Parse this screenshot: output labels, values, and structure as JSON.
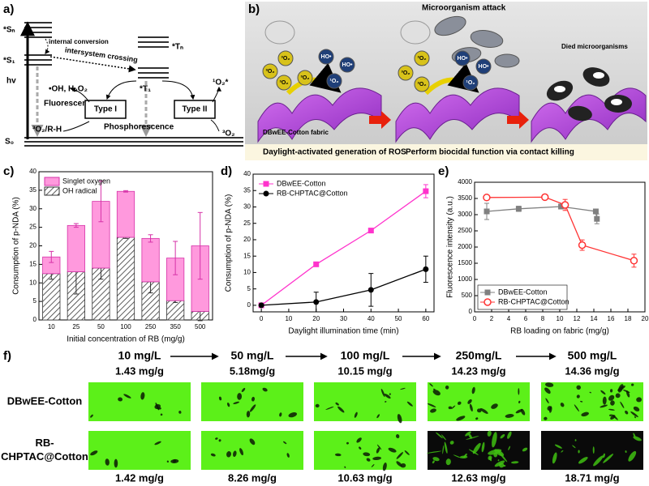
{
  "panel_labels": [
    "a)",
    "b)",
    "c)",
    "d)",
    "e)",
    "f)"
  ],
  "diagram_a": {
    "levels": [
      "*Sₙ",
      "*S₁",
      "S₀"
    ],
    "triplets": [
      "*Tₙ",
      "*T₁"
    ],
    "hv": "hv",
    "internal_conversion": "internal conversion",
    "intersystem_crossing": "intersystem crossing",
    "fluorescence": "Fluorescence",
    "phosphorescence": "Phosphorescence",
    "type1": "Type I",
    "type2": "Type II",
    "type1_in": "³O₂/R-H",
    "type1_out": "•OH, H₂O₂",
    "type2_in": "³O₂",
    "type2_out": "¹O₂*"
  },
  "illustration_b": {
    "attack": "Microorganism attack",
    "died": "Died microorganisms",
    "fabric": "DBwEE-Cotton fabric",
    "caption_left": "Daylight-activated generation of ROS",
    "caption_right": "Perform biocidal function via contact killing",
    "scene1_molecules": [
      "³O₂",
      "³O₂",
      "³O₂",
      "³O₂",
      "HO•",
      "HO•",
      "¹O₂"
    ],
    "scene2_molecules": [
      "³O₂",
      "³O₂",
      "³O₂",
      "HO•",
      "HO•",
      "¹O₂"
    ]
  },
  "chart_data": [
    {
      "type": "bar",
      "stacked": true,
      "categories": [
        "10",
        "25",
        "50",
        "100",
        "250",
        "350",
        "500"
      ],
      "series": [
        {
          "name": "OH radical",
          "color": "#333333",
          "pattern": "hatch",
          "values": [
            12.5,
            13,
            14,
            22.3,
            10.3,
            5.2,
            2.3
          ],
          "errors": [
            1.5,
            6,
            3,
            0.3,
            3,
            0.5,
            2.5
          ]
        },
        {
          "name": "Singlet oxygen",
          "color": "#ff99dd",
          "values": [
            4.5,
            12.5,
            18,
            12.4,
            11.7,
            11.5,
            17.7
          ],
          "errors": [
            1.5,
            0.5,
            5.5,
            0.2,
            1,
            4.5,
            9
          ]
        }
      ],
      "ylim": [
        0,
        40
      ],
      "yticks": [
        0,
        5,
        10,
        15,
        20,
        25,
        30,
        35,
        40
      ],
      "ylabel": "Consumption of p-NDA (%)",
      "xlabel": "Initial concentration of RB (mg/g)",
      "legend": "top-left"
    },
    {
      "type": "line",
      "x": [
        0,
        20,
        40,
        60
      ],
      "series": [
        {
          "name": "DBwEE-Cotton",
          "color": "#ff33cc",
          "marker": "square",
          "values": [
            0,
            12.5,
            22.8,
            34.8
          ],
          "errors": [
            0,
            0.5,
            0.5,
            2
          ]
        },
        {
          "name": "RB-CHPTAC@Cotton",
          "color": "#000000",
          "marker": "circle",
          "values": [
            0,
            1,
            4.7,
            11
          ],
          "errors": [
            0,
            3,
            5,
            4
          ]
        }
      ],
      "xlim": [
        -3,
        63
      ],
      "xticks": [
        0,
        10,
        20,
        30,
        40,
        50,
        60
      ],
      "ylim": [
        -2,
        40
      ],
      "yticks": [
        0,
        5,
        10,
        15,
        20,
        25,
        30,
        35,
        40
      ],
      "ylabel": "Consumption of p-NDA (%)",
      "xlabel": "Daylight illumination time (min)",
      "legend": "top-left"
    },
    {
      "type": "line",
      "series": [
        {
          "name": "DBwEE-Cotton",
          "color": "#808080",
          "marker": "square",
          "x": [
            1.43,
            5.18,
            10.15,
            14.23,
            14.36
          ],
          "values": [
            3100,
            3180,
            3250,
            3100,
            2870
          ],
          "errors": [
            250,
            80,
            50,
            70,
            150
          ]
        },
        {
          "name": "RB-CHPTAC@Cotton",
          "color": "#ff3333",
          "marker": "open-circle",
          "x": [
            1.42,
            8.26,
            10.63,
            12.63,
            18.71
          ],
          "values": [
            3530,
            3540,
            3300,
            2060,
            1580
          ],
          "errors": [
            0,
            0,
            170,
            160,
            200
          ]
        }
      ],
      "xlim": [
        0,
        20
      ],
      "xticks": [
        0,
        2,
        4,
        6,
        8,
        10,
        12,
        14,
        16,
        18,
        20
      ],
      "ylim": [
        0,
        4000
      ],
      "yticks": [
        0,
        500,
        1000,
        1500,
        2000,
        2500,
        3000,
        3500,
        4000
      ],
      "ylabel": "Fluorescence intensity (a.u.)",
      "xlabel": "RB loading on fabric (mg/g)",
      "legend": "bottom-left"
    }
  ],
  "panel_f": {
    "concentrations": [
      "10 mg/L",
      "50 mg/L",
      "100 mg/L",
      "250mg/L",
      "500 mg/L"
    ],
    "rows": [
      {
        "label": [
          "DBwEE-Cotton"
        ],
        "loadings": [
          "1.43 mg/g",
          "5.18mg/g",
          "10.15 mg/g",
          "14.23 mg/g",
          "14.36 mg/g"
        ]
      },
      {
        "label": [
          "RB-",
          "CHPTAC@Cotton"
        ],
        "loadings": [
          "1.42 mg/g",
          "8.26 mg/g",
          "10.63 mg/g",
          "12.63 mg/g",
          "18.71 mg/g"
        ]
      }
    ]
  }
}
